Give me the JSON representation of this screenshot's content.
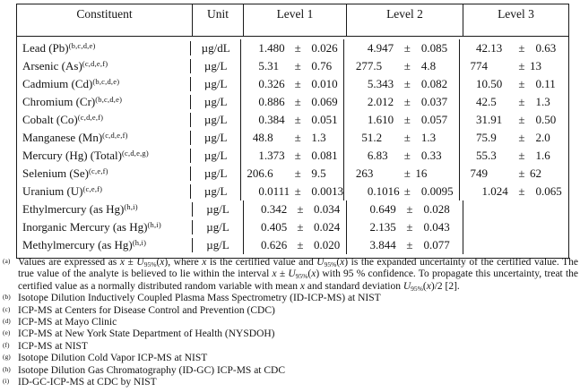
{
  "table": {
    "pm_sign": "±",
    "headers": {
      "constituent": "Constituent",
      "unit": "Unit",
      "levels": [
        "Level 1",
        "Level 2",
        "Level 3"
      ]
    },
    "rows": [
      {
        "name": "Lead (Pb)",
        "sup": "(b,c,d,e)",
        "unit": "µg/dL",
        "l1": {
          "v": "1.480",
          "u": "0.026"
        },
        "l2": {
          "v": "4.947",
          "u": "0.085"
        },
        "l3": {
          "v": "42.13",
          "u": "0.63"
        }
      },
      {
        "name": "Arsenic (As)",
        "sup": "(c,d,e,f)",
        "unit": "µg/L",
        "l1": {
          "v": "5.31",
          "u": "0.76"
        },
        "l2": {
          "v": "277.5",
          "u": "4.8"
        },
        "l3": {
          "v": "774",
          "u": "13"
        }
      },
      {
        "name": "Cadmium (Cd)",
        "sup": "(b,c,d,e)",
        "unit": "µg/L",
        "l1": {
          "v": "0.326",
          "u": "0.010"
        },
        "l2": {
          "v": "5.343",
          "u": "0.082"
        },
        "l3": {
          "v": "10.50",
          "u": "0.11"
        }
      },
      {
        "name": "Chromium (Cr)",
        "sup": "(b,c,d,e)",
        "unit": "µg/L",
        "l1": {
          "v": "0.886",
          "u": "0.069"
        },
        "l2": {
          "v": "2.012",
          "u": "0.037"
        },
        "l3": {
          "v": "42.5",
          "u": "1.3"
        }
      },
      {
        "name": "Cobalt (Co)",
        "sup": "(c,d,e,f)",
        "unit": "µg/L",
        "l1": {
          "v": "0.384",
          "u": "0.051"
        },
        "l2": {
          "v": "1.610",
          "u": "0.057"
        },
        "l3": {
          "v": "31.91",
          "u": "0.50"
        }
      },
      {
        "name": "Manganese (Mn)",
        "sup": "(c,d,e,f)",
        "unit": "µg/L",
        "l1": {
          "v": "48.8",
          "u": "1.3"
        },
        "l2": {
          "v": "51.2",
          "u": "1.3"
        },
        "l3": {
          "v": "75.9",
          "u": "2.0"
        }
      },
      {
        "name": "Mercury (Hg) (Total)",
        "sup": "(c,d,e,g)",
        "unit": "µg/L",
        "l1": {
          "v": "1.373",
          "u": "0.081"
        },
        "l2": {
          "v": "6.83",
          "u": "0.33"
        },
        "l3": {
          "v": "55.3",
          "u": "1.6"
        }
      },
      {
        "name": "Selenium (Se)",
        "sup": "(c,e,f)",
        "unit": "µg/L",
        "l1": {
          "v": "206.6",
          "u": "9.5"
        },
        "l2": {
          "v": "263",
          "u": "16"
        },
        "l3": {
          "v": "749",
          "u": "62"
        }
      },
      {
        "name": "Uranium (U)",
        "sup": "(c,e,f)",
        "unit": "µg/L",
        "l1": {
          "v": "0.0111",
          "u": "0.0013"
        },
        "l2": {
          "v": "0.1016",
          "u": "0.0095"
        },
        "l3": {
          "v": "1.024",
          "u": "0.065"
        }
      },
      {
        "name": "Ethylmercury (as Hg)",
        "sup": "(h,i)",
        "unit": "µg/L",
        "l1": {
          "v": "0.342",
          "u": "0.034"
        },
        "l2": {
          "v": "0.649",
          "u": "0.028"
        },
        "l3": null
      },
      {
        "name": "Inorganic Mercury (as Hg)",
        "sup": "(h,i)",
        "unit": "µg/L",
        "l1": {
          "v": "0.405",
          "u": "0.024"
        },
        "l2": {
          "v": "2.135",
          "u": "0.043"
        },
        "l3": null
      },
      {
        "name": "Methylmercury (as Hg)",
        "sup": "(h,i)",
        "unit": "µg/L",
        "l1": {
          "v": "0.626",
          "u": "0.020"
        },
        "l2": {
          "v": "3.844",
          "u": "0.077"
        },
        "l3": null
      }
    ]
  },
  "footnotes": [
    {
      "marker": "(a)",
      "text": "Values are expressed as [i]x[/i] ± [i]U[/i][sub]95%[/sub]([i]x[/i]), where [i]x[/i] is the certified value and [i]U[/i][sub]95%[/sub]([i]x[/i]) is the expanded uncertainty of the certified value. The true value of the analyte is believed to lie within the interval [i]x[/i] ± [i]U[/i][sub]95%[/sub]([i]x[/i]) with 95 % confidence.  To propagate this uncertainty, treat the certified value as a normally distributed random variable with mean [i]x[/i] and standard deviation [i]U[/i][sub]95%[/sub]([i]x[/i])/2 [2]."
    },
    {
      "marker": "(b)",
      "text": "Isotope Dilution Inductively Coupled Plasma Mass Spectrometry (ID-ICP-MS) at NIST"
    },
    {
      "marker": "(c)",
      "text": "ICP-MS at Centers for Disease Control and Prevention (CDC)"
    },
    {
      "marker": "(d)",
      "text": "ICP-MS at Mayo Clinic"
    },
    {
      "marker": "(e)",
      "text": "ICP-MS at New York State Department of Health (NYSDOH)"
    },
    {
      "marker": "(f)",
      "text": "ICP-MS at NIST"
    },
    {
      "marker": "(g)",
      "text": "Isotope Dilution Cold Vapor ICP-MS at NIST"
    },
    {
      "marker": "(h)",
      "text": "Isotope Dilution Gas Chromatography (ID-GC) ICP-MS at CDC"
    },
    {
      "marker": "(i)",
      "text": "ID-GC-ICP-MS at CDC by NIST"
    }
  ]
}
